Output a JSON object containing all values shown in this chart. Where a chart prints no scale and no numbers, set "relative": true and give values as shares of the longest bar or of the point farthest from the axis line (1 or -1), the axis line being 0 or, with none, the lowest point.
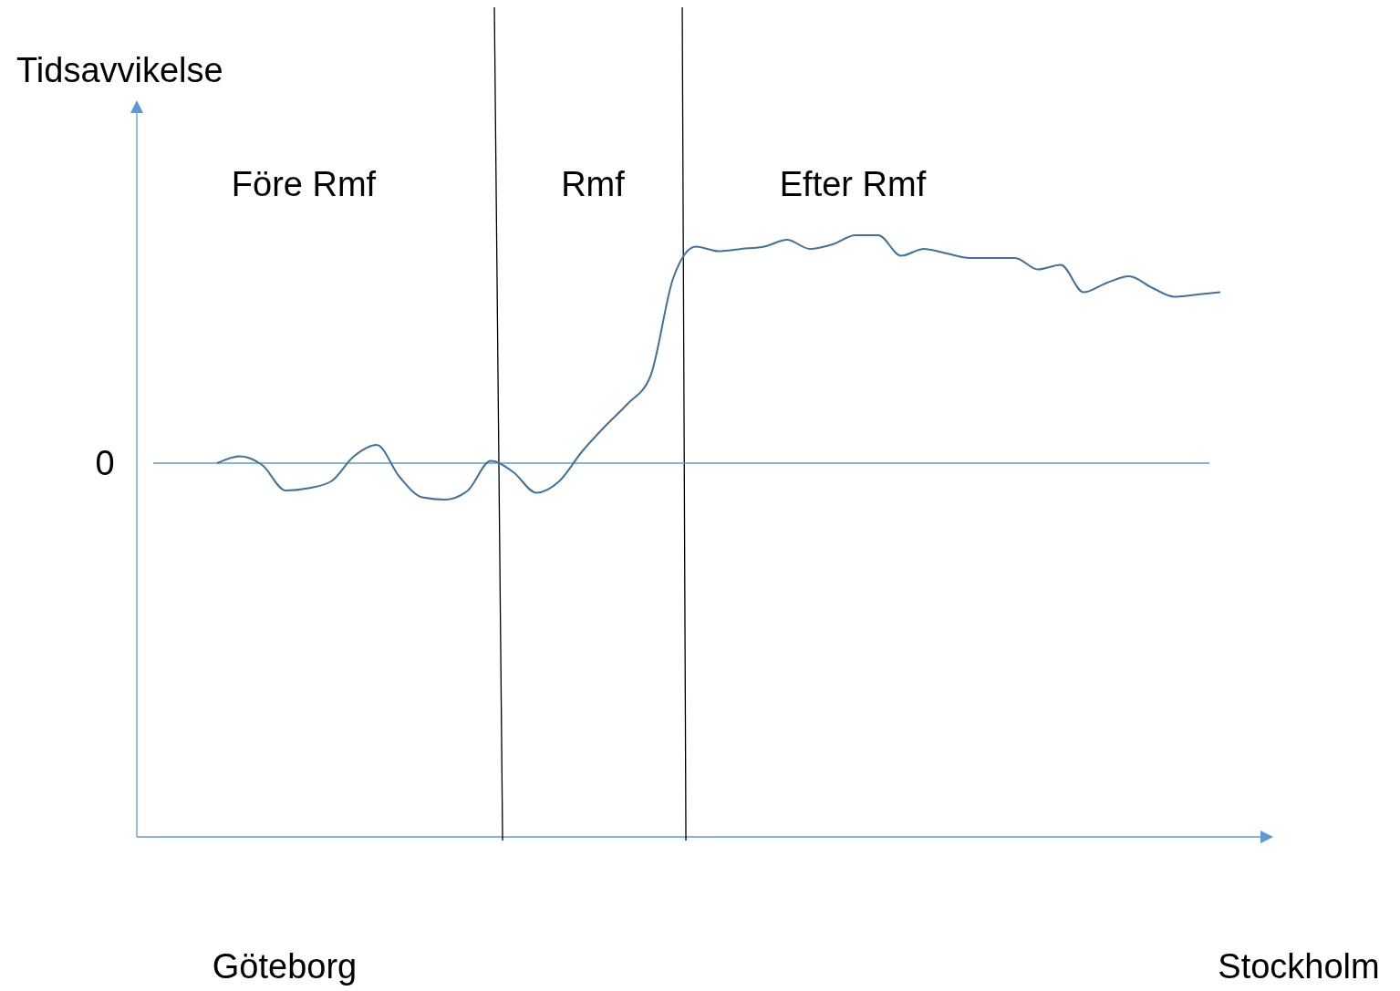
{
  "chart_data": {
    "type": "line",
    "relative": true,
    "ylabel": "Tidsavvikelse",
    "categories": [
      null,
      null,
      null,
      null,
      null,
      null,
      null,
      null,
      null,
      null,
      null,
      null,
      null,
      null,
      null,
      null,
      null,
      null,
      null,
      null,
      null,
      null,
      null,
      null,
      null,
      null,
      null,
      null,
      null,
      null,
      null,
      null,
      null,
      null,
      null,
      null,
      null,
      null,
      null,
      null,
      null,
      null,
      null,
      null,
      null
    ],
    "series": [
      {
        "color": "#41719c",
        "values": [
          0.0,
          0.03,
          -0.01,
          -0.12,
          -0.11,
          -0.08,
          0.03,
          0.08,
          -0.06,
          -0.15,
          -0.16,
          -0.12,
          0.01,
          -0.04,
          -0.13,
          -0.08,
          0.05,
          0.16,
          0.26,
          0.38,
          0.81,
          0.95,
          0.93,
          0.94,
          0.95,
          0.98,
          0.94,
          0.96,
          1.0,
          1.0,
          0.91,
          0.94,
          0.92,
          0.9,
          0.9,
          0.9,
          0.85,
          0.87,
          0.75,
          0.79,
          0.82,
          0.77,
          0.73,
          0.74,
          0.75
        ]
      }
    ],
    "ref_lines": [
      {
        "axis": "y",
        "value": 0,
        "label": "0",
        "color": "#5b9bd5"
      }
    ],
    "annotations": [
      "Före Rmf",
      "Rmf",
      "Efter Rmf",
      "Göteborg",
      "Stockholm"
    ]
  }
}
